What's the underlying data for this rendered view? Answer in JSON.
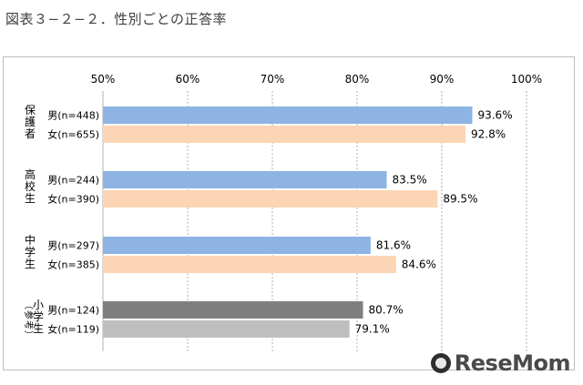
{
  "title": "図表３−２−２．性別ごとの正答率",
  "watermark": "ReseMom",
  "chart_data": {
    "type": "bar",
    "orientation": "horizontal",
    "xlim": [
      50,
      100
    ],
    "ticks": [
      "50%",
      "60%",
      "70%",
      "80%",
      "90%",
      "100%"
    ],
    "tick_values": [
      50,
      60,
      70,
      80,
      90,
      100
    ],
    "grid": true,
    "groups": [
      {
        "label": "保護者",
        "bars": [
          {
            "label": "男(n=448)",
            "value": 93.6,
            "value_label": "93.6%",
            "color": "#8eb4e3"
          },
          {
            "label": "女(n=655)",
            "value": 92.8,
            "value_label": "92.8%",
            "color": "#fcd5b5"
          }
        ]
      },
      {
        "label": "高校生",
        "bars": [
          {
            "label": "男(n=244)",
            "value": 83.5,
            "value_label": "83.5%",
            "color": "#8eb4e3"
          },
          {
            "label": "女(n=390)",
            "value": 89.5,
            "value_label": "89.5%",
            "color": "#fcd5b5"
          }
        ]
      },
      {
        "label": "中学生",
        "bars": [
          {
            "label": "男(n=297)",
            "value": 81.6,
            "value_label": "81.6%",
            "color": "#8eb4e3"
          },
          {
            "label": "女(n=385)",
            "value": 84.6,
            "value_label": "84.6%",
            "color": "#fcd5b5"
          }
        ]
      },
      {
        "label": "小学生",
        "label_note": "（参考）",
        "bars": [
          {
            "label": "男(n=124)",
            "value": 80.7,
            "value_label": "80.7%",
            "color": "#7f7f7f"
          },
          {
            "label": "女(n=119)",
            "value": 79.1,
            "value_label": "79.1%",
            "color": "#bfbfbf"
          }
        ]
      }
    ]
  }
}
